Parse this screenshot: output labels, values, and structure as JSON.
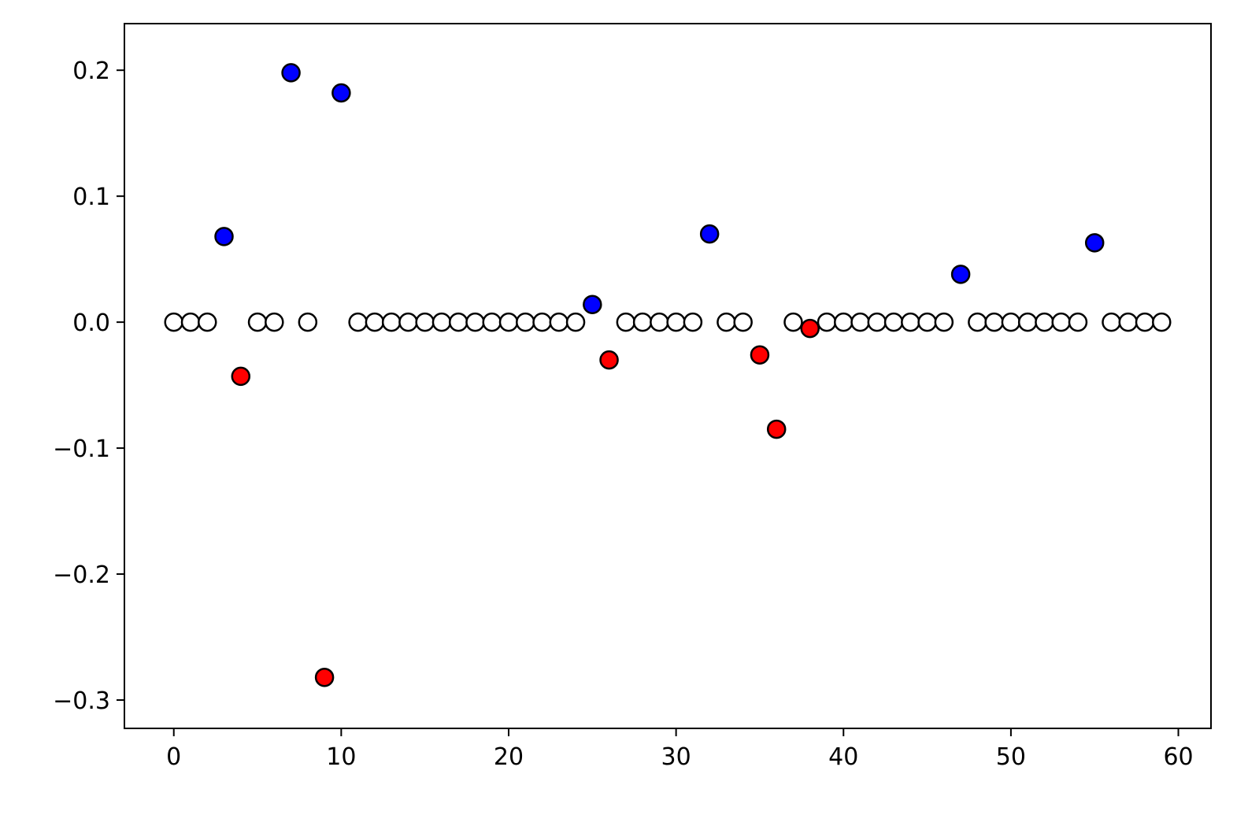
{
  "chart_data": {
    "type": "scatter",
    "x": [
      0,
      1,
      2,
      3,
      4,
      5,
      6,
      7,
      8,
      9,
      10,
      11,
      12,
      13,
      14,
      15,
      16,
      17,
      18,
      19,
      20,
      21,
      22,
      23,
      24,
      25,
      26,
      27,
      28,
      29,
      30,
      31,
      32,
      33,
      34,
      35,
      36,
      37,
      38,
      39,
      40,
      41,
      42,
      43,
      44,
      45,
      46,
      47,
      48,
      49,
      50,
      51,
      52,
      53,
      54,
      55,
      56,
      57,
      58,
      59
    ],
    "y": [
      0,
      0,
      0,
      0.068,
      -0.043,
      0,
      0,
      0.198,
      0,
      -0.282,
      0.182,
      0,
      0,
      0,
      0,
      0,
      0,
      0,
      0,
      0,
      0,
      0,
      0,
      0,
      0,
      0.014,
      -0.03,
      0,
      0,
      0,
      0,
      0,
      0.07,
      0,
      0,
      -0.026,
      -0.085,
      0,
      -0.005,
      0,
      0,
      0,
      0,
      0,
      0,
      0,
      0,
      0.038,
      0,
      0,
      0,
      0,
      0,
      0,
      0,
      0.063,
      0,
      0,
      0,
      0
    ],
    "colors": [
      "#ffffff",
      "#ffffff",
      "#ffffff",
      "#0000ff",
      "#ff0000",
      "#ffffff",
      "#ffffff",
      "#0000ff",
      "#ffffff",
      "#ff0000",
      "#0000ff",
      "#ffffff",
      "#ffffff",
      "#ffffff",
      "#ffffff",
      "#ffffff",
      "#ffffff",
      "#ffffff",
      "#ffffff",
      "#ffffff",
      "#ffffff",
      "#ffffff",
      "#ffffff",
      "#ffffff",
      "#ffffff",
      "#0000ff",
      "#ff0000",
      "#ffffff",
      "#ffffff",
      "#ffffff",
      "#ffffff",
      "#ffffff",
      "#0000ff",
      "#ffffff",
      "#ffffff",
      "#ff0000",
      "#ff0000",
      "#ffffff",
      "#ff0000",
      "#ffffff",
      "#ffffff",
      "#ffffff",
      "#ffffff",
      "#ffffff",
      "#ffffff",
      "#ffffff",
      "#ffffff",
      "#0000ff",
      "#ffffff",
      "#ffffff",
      "#ffffff",
      "#ffffff",
      "#ffffff",
      "#ffffff",
      "#ffffff",
      "#0000ff",
      "#ffffff",
      "#ffffff",
      "#ffffff",
      "#ffffff"
    ],
    "edgecolor": "#000000",
    "xlim": [
      -2.95,
      61.95
    ],
    "ylim": [
      -0.3225,
      0.237
    ],
    "xticks": [
      0,
      10,
      20,
      30,
      40,
      50,
      60
    ],
    "yticks": [
      {
        "value": -0.3,
        "label": "−0.3"
      },
      {
        "value": -0.2,
        "label": "−0.2"
      },
      {
        "value": -0.1,
        "label": "−0.1"
      },
      {
        "value": 0,
        "label": "0.0"
      },
      0.1,
      0.2
    ]
  }
}
